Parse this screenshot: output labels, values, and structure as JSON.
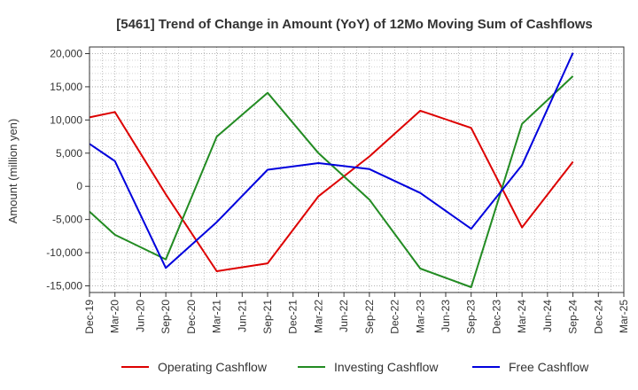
{
  "chart_data": {
    "type": "line",
    "title": "[5461]  Trend of Change in Amount (YoY) of 12Mo Moving Sum of Cashflows",
    "xlabel": "",
    "ylabel": "Amount (million yen)",
    "ylim": [
      -16000,
      21000
    ],
    "yticks": [
      -15000,
      -10000,
      -5000,
      0,
      5000,
      10000,
      15000,
      20000
    ],
    "ytick_labels": [
      "-15,000",
      "-10,000",
      "-5,000",
      "0",
      "5,000",
      "10,000",
      "15,000",
      "20,000"
    ],
    "categories": [
      "Dec-19",
      "Mar-20",
      "Jun-20",
      "Sep-20",
      "Dec-20",
      "Mar-21",
      "Jun-21",
      "Sep-21",
      "Dec-21",
      "Mar-22",
      "Jun-22",
      "Sep-22",
      "Dec-22",
      "Mar-23",
      "Jun-23",
      "Sep-23",
      "Dec-23",
      "Mar-24",
      "Jun-24",
      "Sep-24",
      "Dec-24",
      "Mar-25"
    ],
    "grid": true,
    "legend_position": "bottom",
    "series": [
      {
        "name": "Operating Cashflow",
        "color": "#dd0000",
        "values": [
          10400,
          11200,
          null,
          -1200,
          null,
          -12800,
          null,
          -11600,
          null,
          -1500,
          null,
          4500,
          null,
          11400,
          null,
          8800,
          null,
          -6200,
          null,
          3700,
          null,
          null
        ]
      },
      {
        "name": "Investing Cashflow",
        "color": "#228b22",
        "values": [
          -3800,
          -7300,
          null,
          -11000,
          null,
          7500,
          null,
          14100,
          null,
          5000,
          null,
          -2000,
          null,
          -12400,
          null,
          -15200,
          null,
          9400,
          null,
          16600,
          null,
          null
        ]
      },
      {
        "name": "Free Cashflow",
        "color": "#0000dd",
        "values": [
          6400,
          3800,
          null,
          -12300,
          null,
          -5400,
          null,
          2500,
          null,
          3500,
          null,
          2600,
          null,
          -1000,
          null,
          -6400,
          null,
          3200,
          null,
          20100,
          null,
          null
        ]
      }
    ]
  }
}
